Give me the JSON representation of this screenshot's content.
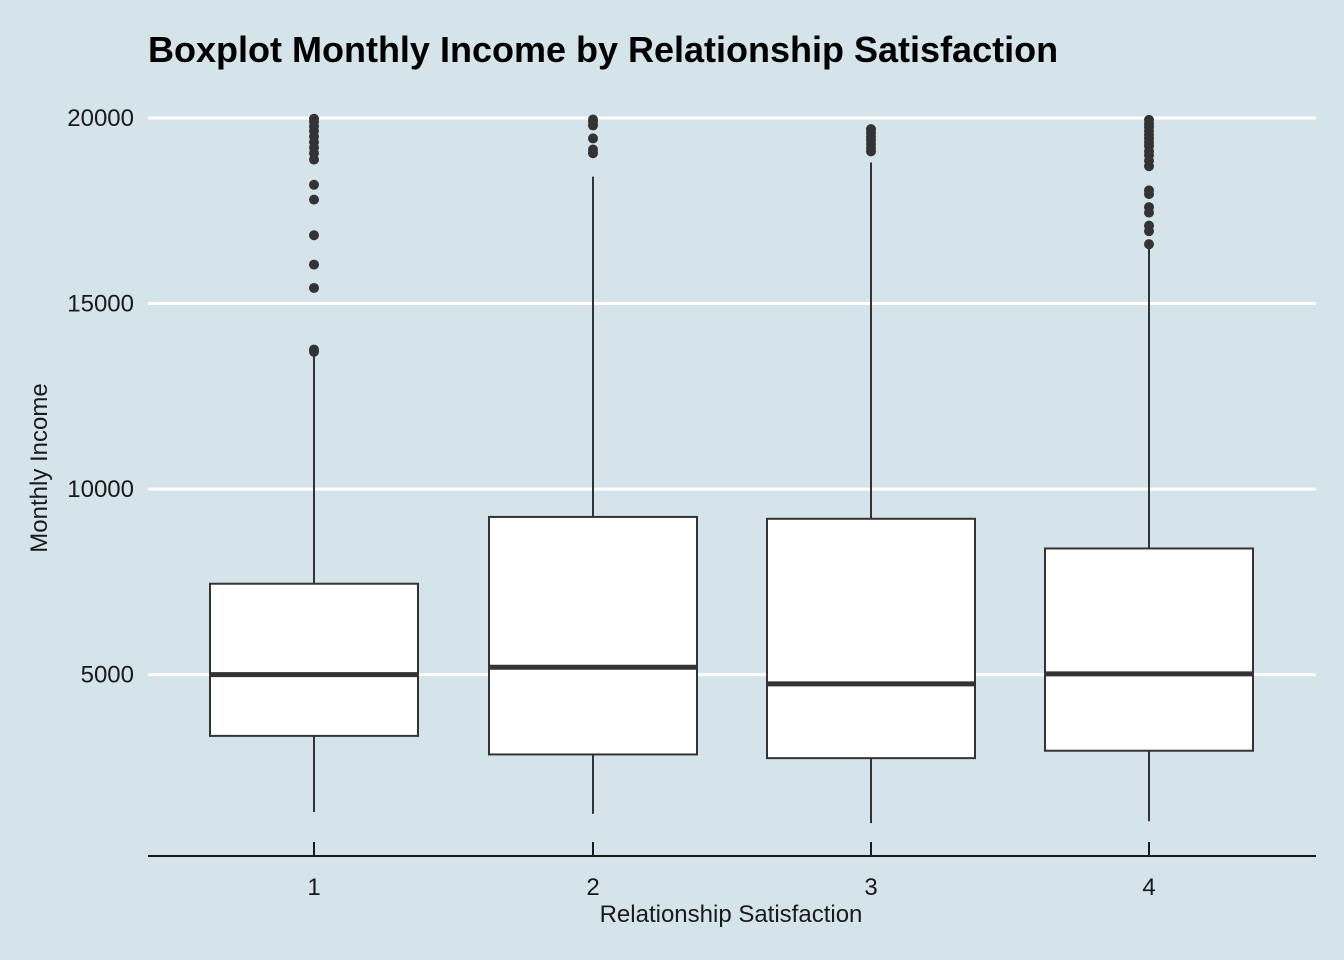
{
  "chart_data": {
    "type": "boxplot",
    "title": "Boxplot Monthly Income by Relationship Satisfaction",
    "xlabel": "Relationship Satisfaction",
    "ylabel": "Monthly Income",
    "categories": [
      "1",
      "2",
      "3",
      "4"
    ],
    "y_ticks": [
      5000,
      10000,
      15000,
      20000
    ],
    "y_tick_labels": [
      "5000",
      "10000",
      "15000",
      "20000"
    ],
    "ylim": [
      0,
      20000
    ],
    "grid": "horizontal major lines",
    "legend": "none",
    "colors": {
      "background": "#d5e4eb",
      "grid": "#ffffff",
      "box_fill": "#ffffff",
      "box_stroke": "#333333",
      "outlier": "#333333"
    },
    "boxes": [
      {
        "category": "1",
        "whisker_low": 1300,
        "q1": 3350,
        "median": 5000,
        "q3": 7450,
        "whisker_high": 13600,
        "outliers": [
          13700,
          13760,
          15420,
          16050,
          16840,
          17800,
          18200,
          18880,
          19050,
          19200,
          19350,
          19500,
          19650,
          19780,
          19900,
          19980
        ]
      },
      {
        "category": "2",
        "whisker_low": 1250,
        "q1": 2850,
        "median": 5200,
        "q3": 9250,
        "whisker_high": 18420,
        "outliers": [
          19050,
          19150,
          19450,
          19800,
          19900,
          19960
        ]
      },
      {
        "category": "3",
        "whisker_low": 1000,
        "q1": 2750,
        "median": 4750,
        "q3": 9200,
        "whisker_high": 18800,
        "outliers": [
          19100,
          19200,
          19300,
          19400,
          19500,
          19600,
          19700
        ]
      },
      {
        "category": "4",
        "whisker_low": 1050,
        "q1": 2950,
        "median": 5020,
        "q3": 8400,
        "whisker_high": 16500,
        "outliers": [
          16600,
          16950,
          17100,
          17450,
          17600,
          17950,
          18050,
          18700,
          18850,
          19000,
          19100,
          19250,
          19350,
          19450,
          19550,
          19650,
          19750,
          19850,
          19950
        ]
      }
    ]
  }
}
